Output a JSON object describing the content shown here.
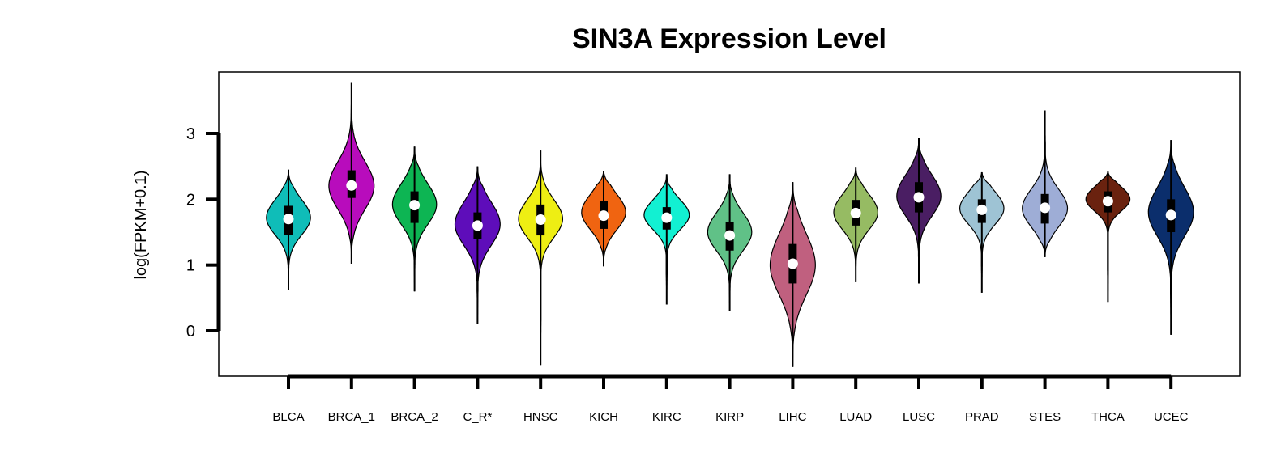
{
  "chart_data": {
    "type": "violin",
    "title": "SIN3A Expression Level",
    "ylabel": "log(FPKM+0.1)",
    "ylim": [
      -0.7,
      3.9
    ],
    "yticks": [
      0,
      1,
      2,
      3
    ],
    "grid": false,
    "series": [
      {
        "category": "BLCA",
        "color": "#0FBDB8",
        "median": 1.7,
        "q1": 1.46,
        "q3": 1.9,
        "min": 0.62,
        "max": 2.45,
        "mode": 1.72,
        "spread": 0.26,
        "width": 0.8
      },
      {
        "category": "BRCA_1",
        "color": "#B80CBC",
        "median": 2.21,
        "q1": 2.02,
        "q3": 2.44,
        "min": 1.02,
        "max": 3.78,
        "mode": 2.2,
        "spread": 0.35,
        "width": 0.82
      },
      {
        "category": "BRCA_2",
        "color": "#0DB553",
        "median": 1.91,
        "q1": 1.64,
        "q3": 2.12,
        "min": 0.6,
        "max": 2.8,
        "mode": 1.92,
        "spread": 0.3,
        "width": 0.8
      },
      {
        "category": "C_R*",
        "color": "#5E0DBA",
        "median": 1.6,
        "q1": 1.4,
        "q3": 1.8,
        "min": 0.1,
        "max": 2.5,
        "mode": 1.62,
        "spread": 0.32,
        "width": 0.82
      },
      {
        "category": "HNSC",
        "color": "#EEEE13",
        "median": 1.69,
        "q1": 1.45,
        "q3": 1.92,
        "min": -0.52,
        "max": 2.74,
        "mode": 1.7,
        "spread": 0.28,
        "width": 0.8
      },
      {
        "category": "KICH",
        "color": "#F06411",
        "median": 1.75,
        "q1": 1.55,
        "q3": 1.97,
        "min": 0.98,
        "max": 2.43,
        "mode": 1.8,
        "spread": 0.26,
        "width": 0.8
      },
      {
        "category": "KIRC",
        "color": "#12F0D2",
        "median": 1.72,
        "q1": 1.54,
        "q3": 1.88,
        "min": 0.4,
        "max": 2.38,
        "mode": 1.76,
        "spread": 0.22,
        "width": 0.82
      },
      {
        "category": "KIRP",
        "color": "#60C187",
        "median": 1.45,
        "q1": 1.22,
        "q3": 1.66,
        "min": 0.3,
        "max": 2.38,
        "mode": 1.5,
        "spread": 0.28,
        "width": 0.8
      },
      {
        "category": "LIHC",
        "color": "#C0607F",
        "median": 1.02,
        "q1": 0.72,
        "q3": 1.32,
        "min": -0.55,
        "max": 2.26,
        "mode": 1.0,
        "spread": 0.45,
        "width": 0.82
      },
      {
        "category": "LUAD",
        "color": "#96BB63",
        "median": 1.79,
        "q1": 1.6,
        "q3": 1.99,
        "min": 0.74,
        "max": 2.48,
        "mode": 1.8,
        "spread": 0.26,
        "width": 0.8
      },
      {
        "category": "LUSC",
        "color": "#4A1E63",
        "median": 2.03,
        "q1": 1.8,
        "q3": 2.26,
        "min": 0.72,
        "max": 2.93,
        "mode": 2.05,
        "spread": 0.3,
        "width": 0.8
      },
      {
        "category": "PRAD",
        "color": "#9EC3D4",
        "median": 1.84,
        "q1": 1.64,
        "q3": 2.0,
        "min": 0.58,
        "max": 2.41,
        "mode": 1.86,
        "spread": 0.24,
        "width": 0.8
      },
      {
        "category": "STES",
        "color": "#9EADD6",
        "median": 1.87,
        "q1": 1.63,
        "q3": 2.08,
        "min": 1.12,
        "max": 3.35,
        "mode": 1.86,
        "spread": 0.28,
        "width": 0.82
      },
      {
        "category": "THCA",
        "color": "#6A220F",
        "median": 1.97,
        "q1": 1.8,
        "q3": 2.12,
        "min": 0.44,
        "max": 2.42,
        "mode": 2.0,
        "spread": 0.18,
        "width": 0.8
      },
      {
        "category": "UCEC",
        "color": "#0B2E6C",
        "median": 1.76,
        "q1": 1.5,
        "q3": 2.0,
        "min": -0.06,
        "max": 2.9,
        "mode": 1.8,
        "spread": 0.36,
        "width": 0.82
      }
    ]
  }
}
